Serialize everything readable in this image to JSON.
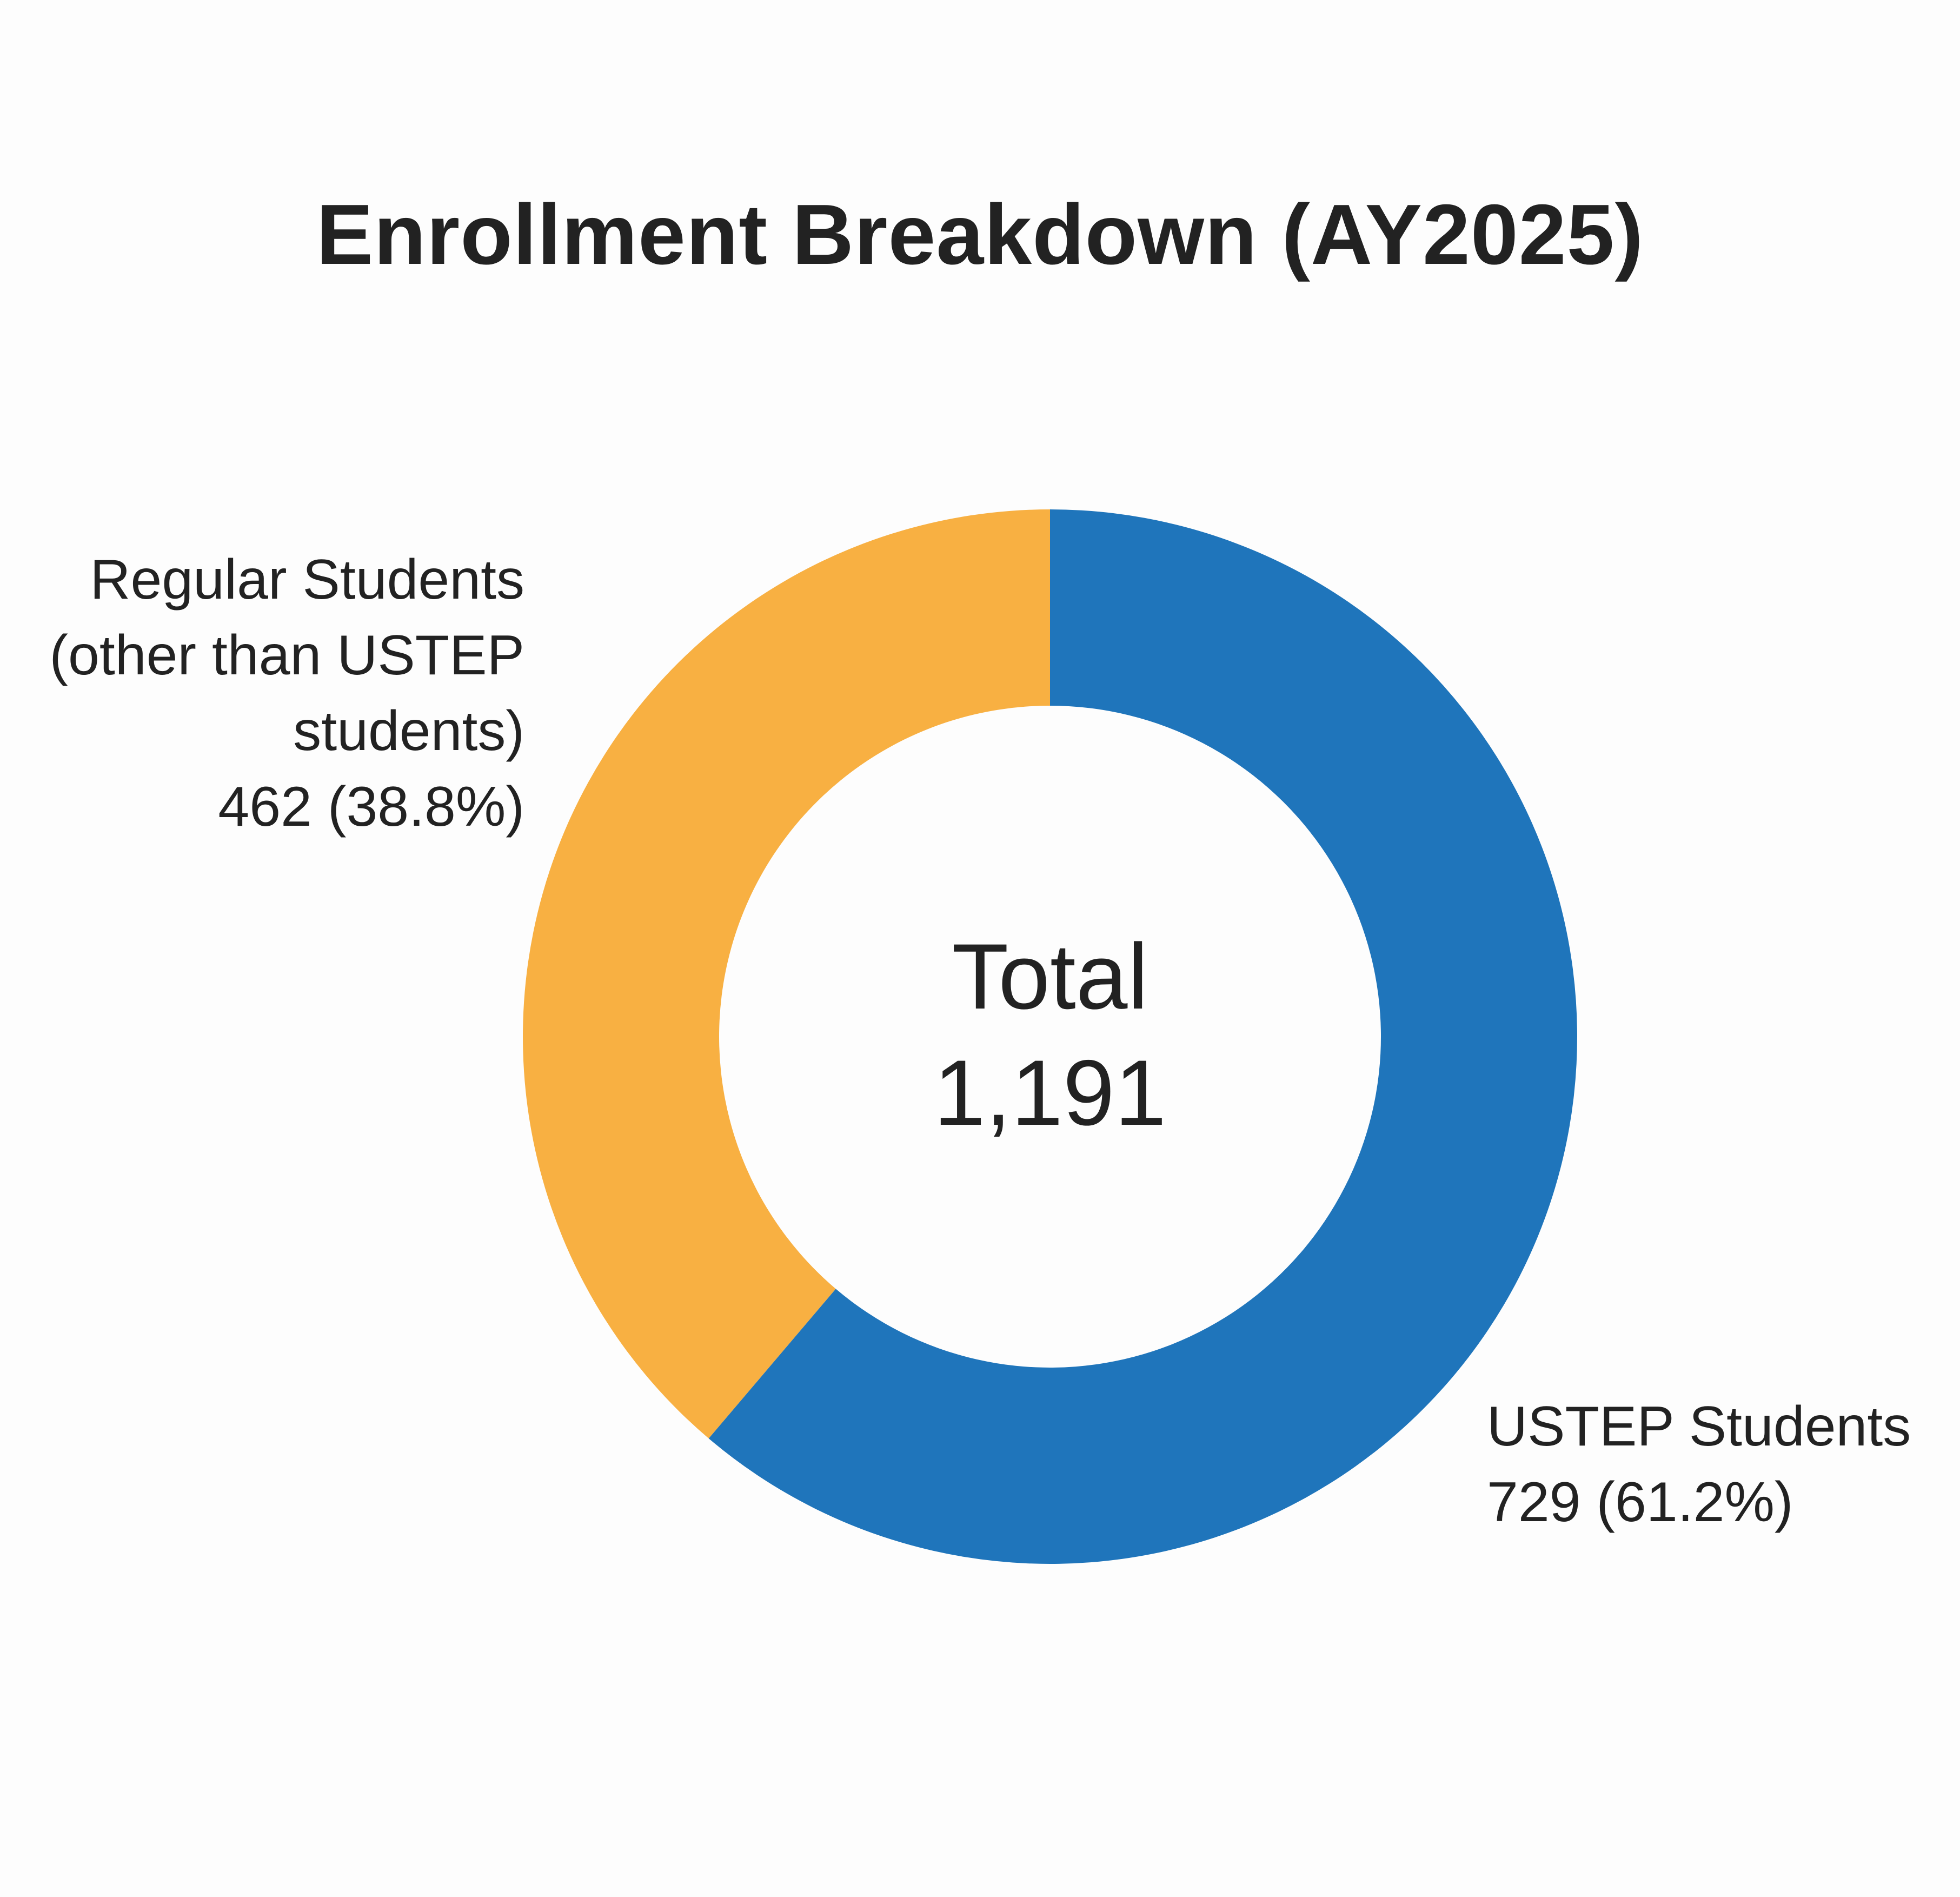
{
  "chart_data": {
    "type": "pie",
    "subtype": "donut",
    "title": "Enrollment Breakdown (AY2025)",
    "center": {
      "label": "Total",
      "value_text": "1,191",
      "value": 1191
    },
    "slices": [
      {
        "label": "USTEP Students",
        "value": 729,
        "percent": 61.2,
        "label_text": [
          "USTEP Students",
          "729 (61.2%)"
        ],
        "color": "#1f75bb"
      },
      {
        "label": "Regular Students (other than USTEP students)",
        "value": 462,
        "percent": 38.8,
        "label_text": [
          "Regular Students",
          "(other than USTEP",
          "students)",
          "462 (38.8%)"
        ],
        "color": "#f8b042"
      }
    ],
    "start_angle": "12 o'clock",
    "direction": "clockwise",
    "legend": "none"
  }
}
